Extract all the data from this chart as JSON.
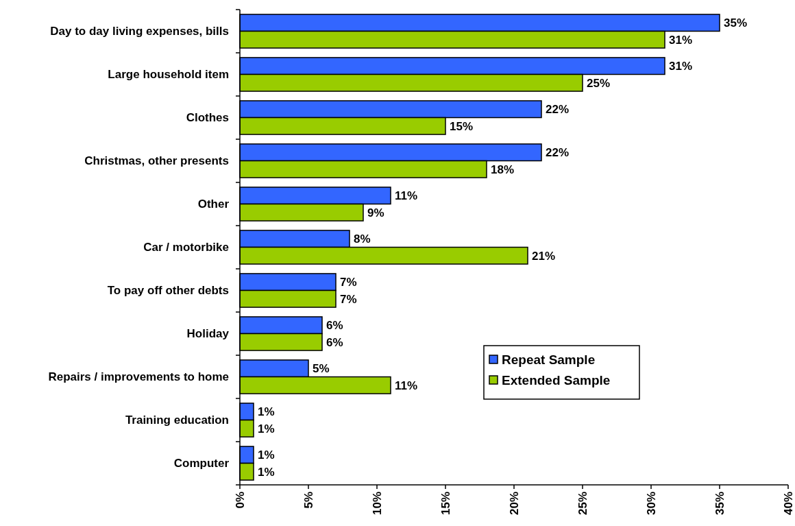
{
  "chart_data": {
    "type": "bar",
    "orientation": "horizontal",
    "categories": [
      "Day to day living expenses, bills",
      "Large household item",
      "Clothes",
      "Christmas, other presents",
      "Other",
      "Car / motorbike",
      "To pay off other debts",
      "Holiday",
      "Repairs / improvements to home",
      "Training education",
      "Computer"
    ],
    "series": [
      {
        "name": "Repeat Sample",
        "color": "#3366ff",
        "values": [
          35,
          31,
          22,
          22,
          11,
          8,
          7,
          6,
          5,
          1,
          1
        ],
        "value_labels": [
          "35%",
          "31%",
          "22%",
          "22%",
          "11%",
          "8%",
          "7%",
          "6%",
          "5%",
          "1%",
          "1%"
        ]
      },
      {
        "name": "Extended Sample",
        "color": "#99cc00",
        "values": [
          31,
          25,
          15,
          18,
          9,
          21,
          7,
          6,
          11,
          1,
          1
        ],
        "value_labels": [
          "31%",
          "25%",
          "15%",
          "18%",
          "9%",
          "21%",
          "7%",
          "6%",
          "11%",
          "1%",
          "1%"
        ]
      }
    ],
    "xlim": [
      0,
      40
    ],
    "xticks": [
      {
        "value": 0,
        "label": "0%"
      },
      {
        "value": 5,
        "label": "5%"
      },
      {
        "value": 10,
        "label": "10%"
      },
      {
        "value": 15,
        "label": "15%"
      },
      {
        "value": 20,
        "label": "20%"
      },
      {
        "value": 25,
        "label": "25%"
      },
      {
        "value": 30,
        "label": "30%"
      },
      {
        "value": 35,
        "label": "35%"
      },
      {
        "value": 40,
        "label": "40%"
      }
    ],
    "grid": false,
    "legend": "bottom right"
  }
}
